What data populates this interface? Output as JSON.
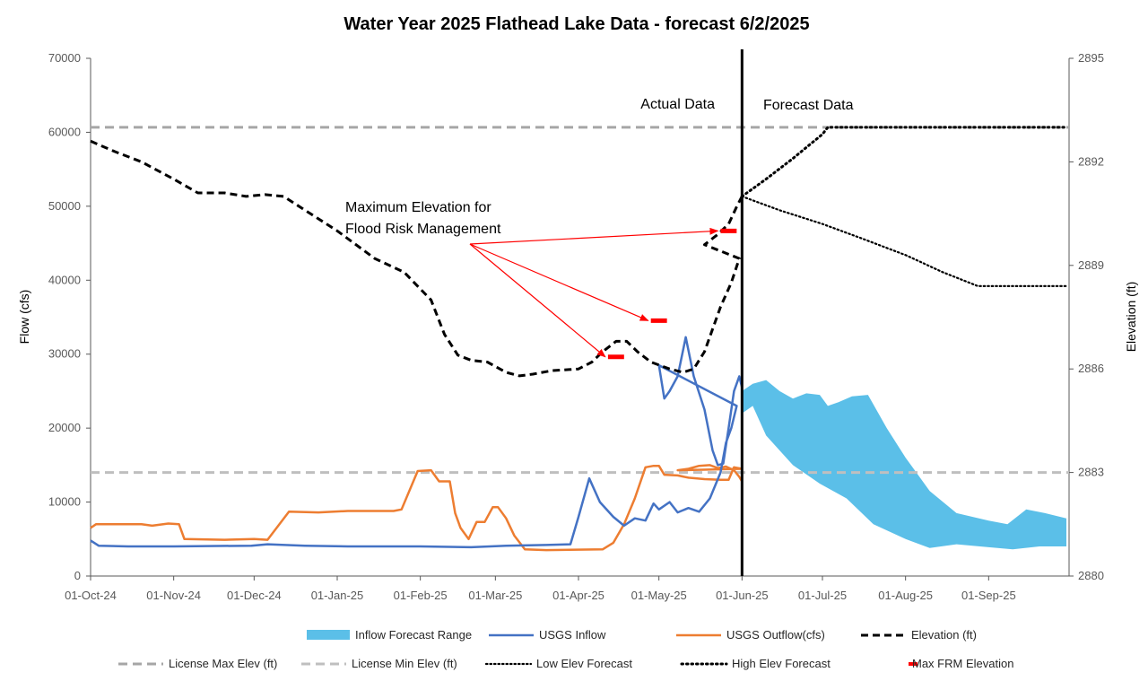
{
  "chart_data": {
    "type": "line",
    "title": "Water Year 2025 Flathead Lake Data - forecast 6/2/2025",
    "ylabel": "Flow (cfs)",
    "y2label": "Elevation (ft)",
    "ylim": [
      0,
      70000
    ],
    "y2lim": [
      2880,
      2895
    ],
    "yticks": [
      0,
      10000,
      20000,
      30000,
      40000,
      50000,
      60000,
      70000
    ],
    "y2ticks": [
      2880,
      2883,
      2886,
      2889,
      2892,
      2895
    ],
    "xlim": [
      "2024-10-01",
      "2025-09-30"
    ],
    "xticks": [
      "2024-10-01",
      "2024-11-01",
      "2024-12-01",
      "2025-01-01",
      "2025-02-01",
      "2025-03-01",
      "2025-04-01",
      "2025-05-01",
      "2025-06-01",
      "2025-07-01",
      "2025-08-01",
      "2025-09-01"
    ],
    "xtick_labels": [
      "01-Oct-24",
      "01-Nov-24",
      "01-Dec-24",
      "01-Jan-25",
      "01-Feb-25",
      "01-Mar-25",
      "01-Apr-25",
      "01-May-25",
      "01-Jun-25",
      "01-Jul-25",
      "01-Aug-25",
      "01-Sep-25"
    ],
    "divider_date": "2025-06-01",
    "region_labels": {
      "actual": "Actual Data",
      "forecast": "Forecast Data"
    },
    "annotation": {
      "line1": "Maximum Elevation for",
      "line2": "Flood Risk Management"
    },
    "colors": {
      "inflow_range": "#5bbfe8",
      "usgs_inflow": "#4472c4",
      "usgs_outflow": "#ed7d31",
      "elevation": "#000000",
      "license_max": "#a6a6a6",
      "license_min": "#bfbfbf",
      "forecast_dots": "#000000",
      "max_frm": "#ff0000",
      "arrows": "#ff0000"
    },
    "series": {
      "inflow_range": {
        "name": "Inflow Forecast Range",
        "upper": [
          [
            "2025-06-01",
            25000
          ],
          [
            "2025-06-05",
            26000
          ],
          [
            "2025-06-10",
            26500
          ],
          [
            "2025-06-15",
            25000
          ],
          [
            "2025-06-20",
            24000
          ],
          [
            "2025-06-25",
            24700
          ],
          [
            "2025-06-30",
            24500
          ],
          [
            "2025-07-03",
            23000
          ],
          [
            "2025-07-07",
            23500
          ],
          [
            "2025-07-12",
            24300
          ],
          [
            "2025-07-18",
            24500
          ],
          [
            "2025-07-25",
            20000
          ],
          [
            "2025-08-01",
            16000
          ],
          [
            "2025-08-10",
            11500
          ],
          [
            "2025-08-20",
            8500
          ],
          [
            "2025-09-01",
            7500
          ],
          [
            "2025-09-08",
            7000
          ],
          [
            "2025-09-15",
            9000
          ],
          [
            "2025-09-22",
            8500
          ],
          [
            "2025-09-30",
            7800
          ]
        ],
        "lower": [
          [
            "2025-06-01",
            22000
          ],
          [
            "2025-06-05",
            23000
          ],
          [
            "2025-06-10",
            19000
          ],
          [
            "2025-06-20",
            15000
          ],
          [
            "2025-06-30",
            12500
          ],
          [
            "2025-07-10",
            10500
          ],
          [
            "2025-07-20",
            7000
          ],
          [
            "2025-08-01",
            5000
          ],
          [
            "2025-08-10",
            3800
          ],
          [
            "2025-08-20",
            4300
          ],
          [
            "2025-09-01",
            3900
          ],
          [
            "2025-09-10",
            3600
          ],
          [
            "2025-09-20",
            4000
          ],
          [
            "2025-09-30",
            4000
          ]
        ]
      },
      "usgs_inflow": {
        "name": "USGS Inflow",
        "points": [
          [
            "2024-10-01",
            4800
          ],
          [
            "2024-10-04",
            4100
          ],
          [
            "2024-10-15",
            4000
          ],
          [
            "2024-11-01",
            4000
          ],
          [
            "2024-11-30",
            4100
          ],
          [
            "2024-12-06",
            4300
          ],
          [
            "2024-12-20",
            4100
          ],
          [
            "2025-01-05",
            4000
          ],
          [
            "2025-02-01",
            4000
          ],
          [
            "2025-02-20",
            3900
          ],
          [
            "2025-03-05",
            4100
          ],
          [
            "2025-03-20",
            4200
          ],
          [
            "2025-03-29",
            4300
          ],
          [
            "2025-04-01",
            8000
          ],
          [
            "2025-04-05",
            13200
          ],
          [
            "2025-04-09",
            10000
          ],
          [
            "2025-04-14",
            8000
          ],
          [
            "2025-04-18",
            6800
          ],
          [
            "2025-04-22",
            7800
          ],
          [
            "2025-04-26",
            7500
          ],
          [
            "2025-04-29",
            9800
          ],
          [
            "2025-05-01",
            9000
          ],
          [
            "2025-05-05",
            10000
          ],
          [
            "2025-05-08",
            8600
          ],
          [
            "2025-05-12",
            9200
          ],
          [
            "2025-05-16",
            8700
          ],
          [
            "2025-05-20",
            10500
          ],
          [
            "2025-05-24",
            14000
          ],
          [
            "2025-05-26",
            18000
          ],
          [
            "2025-05-28",
            20000
          ],
          [
            "2025-05-30",
            23000
          ],
          [
            "2025-05-01",
            28500
          ],
          [
            "2025-05-03",
            24000
          ],
          [
            "2025-05-05",
            25000
          ],
          [
            "2025-05-08",
            27000
          ],
          [
            "2025-05-11",
            32300
          ],
          [
            "2025-05-14",
            27000
          ],
          [
            "2025-05-18",
            22500
          ],
          [
            "2025-05-21",
            17000
          ],
          [
            "2025-05-23",
            15000
          ],
          [
            "2025-05-25",
            15200
          ],
          [
            "2025-05-27",
            20000
          ],
          [
            "2025-05-29",
            25000
          ],
          [
            "2025-05-31",
            27000
          ],
          [
            "2025-06-01",
            25500
          ]
        ]
      },
      "usgs_outflow": {
        "name": "USGS Outflow(cfs)",
        "points": [
          [
            "2024-10-01",
            6500
          ],
          [
            "2024-10-03",
            7000
          ],
          [
            "2024-10-20",
            7000
          ],
          [
            "2024-10-24",
            6800
          ],
          [
            "2024-10-30",
            7100
          ],
          [
            "2024-11-03",
            7000
          ],
          [
            "2024-11-05",
            5000
          ],
          [
            "2024-11-20",
            4900
          ],
          [
            "2024-12-01",
            5000
          ],
          [
            "2024-12-06",
            4900
          ],
          [
            "2024-12-14",
            8700
          ],
          [
            "2024-12-25",
            8600
          ],
          [
            "2025-01-05",
            8800
          ],
          [
            "2025-01-22",
            8800
          ],
          [
            "2025-01-25",
            9000
          ],
          [
            "2025-01-31",
            14200
          ],
          [
            "2025-02-05",
            14300
          ],
          [
            "2025-02-08",
            12800
          ],
          [
            "2025-02-12",
            12800
          ],
          [
            "2025-02-14",
            8500
          ],
          [
            "2025-02-16",
            6500
          ],
          [
            "2025-02-19",
            5000
          ],
          [
            "2025-02-22",
            7300
          ],
          [
            "2025-02-25",
            7300
          ],
          [
            "2025-02-28",
            9300
          ],
          [
            "2025-03-02",
            9300
          ],
          [
            "2025-03-05",
            7800
          ],
          [
            "2025-03-08",
            5500
          ],
          [
            "2025-03-12",
            3600
          ],
          [
            "2025-03-20",
            3500
          ],
          [
            "2025-04-10",
            3600
          ],
          [
            "2025-04-14",
            4500
          ],
          [
            "2025-04-18",
            7000
          ],
          [
            "2025-04-22",
            10500
          ],
          [
            "2025-04-26",
            14700
          ],
          [
            "2025-04-29",
            14900
          ],
          [
            "2025-05-01",
            14900
          ],
          [
            "2025-05-03",
            13700
          ],
          [
            "2025-05-08",
            13600
          ],
          [
            "2025-05-12",
            13300
          ],
          [
            "2025-05-18",
            13100
          ],
          [
            "2025-05-24",
            13000
          ],
          [
            "2025-05-27",
            13000
          ],
          [
            "2025-05-29",
            14700
          ],
          [
            "2025-06-01",
            14500
          ],
          [
            "2025-05-08",
            14300
          ],
          [
            "2025-05-12",
            14500
          ],
          [
            "2025-05-16",
            14900
          ],
          [
            "2025-05-20",
            15000
          ],
          [
            "2025-05-23",
            14600
          ],
          [
            "2025-05-26",
            14800
          ],
          [
            "2025-05-29",
            14300
          ],
          [
            "2025-05-31",
            13400
          ],
          [
            "2025-06-01",
            12800
          ]
        ]
      },
      "elevation": {
        "name": "Elevation (ft)",
        "points": [
          [
            "2024-10-01",
            2892.6
          ],
          [
            "2024-10-10",
            2892.3
          ],
          [
            "2024-10-20",
            2892.0
          ],
          [
            "2024-11-01",
            2891.5
          ],
          [
            "2024-11-10",
            2891.1
          ],
          [
            "2024-11-20",
            2891.1
          ],
          [
            "2024-11-28",
            2891.0
          ],
          [
            "2024-12-05",
            2891.05
          ],
          [
            "2024-12-12",
            2891.0
          ],
          [
            "2024-12-20",
            2890.6
          ],
          [
            "2025-01-01",
            2890.0
          ],
          [
            "2025-01-15",
            2889.2
          ],
          [
            "2025-01-26",
            2888.8
          ],
          [
            "2025-02-05",
            2888.0
          ],
          [
            "2025-02-10",
            2887.0
          ],
          [
            "2025-02-15",
            2886.4
          ],
          [
            "2025-02-20",
            2886.25
          ],
          [
            "2025-02-26",
            2886.2
          ],
          [
            "2025-03-05",
            2885.9
          ],
          [
            "2025-03-10",
            2885.8
          ],
          [
            "2025-03-15",
            2885.85
          ],
          [
            "2025-03-22",
            2885.95
          ],
          [
            "2025-04-01",
            2886.0
          ],
          [
            "2025-04-06",
            2886.2
          ],
          [
            "2025-04-10",
            2886.5
          ],
          [
            "2025-04-15",
            2886.8
          ],
          [
            "2025-04-19",
            2886.8
          ],
          [
            "2025-04-23",
            2886.5
          ],
          [
            "2025-04-28",
            2886.2
          ],
          [
            "2025-05-05",
            2886.0
          ],
          [
            "2025-05-10",
            2885.9
          ],
          [
            "2025-05-14",
            2886.0
          ],
          [
            "2025-05-18",
            2886.5
          ],
          [
            "2025-05-24",
            2887.8
          ],
          [
            "2025-05-28",
            2888.5
          ],
          [
            "2025-05-31",
            2889.2
          ],
          [
            "2025-05-18",
            2889.6
          ],
          [
            "2025-05-23",
            2889.9
          ],
          [
            "2025-05-27",
            2890.2
          ],
          [
            "2025-05-30",
            2890.7
          ],
          [
            "2025-06-01",
            2891.0
          ]
        ]
      },
      "license_max": {
        "name": "License Max Elev (ft)",
        "value": 2893
      },
      "license_min": {
        "name": "License Min Elev (ft)",
        "value": 2883
      },
      "low_elev_forecast": {
        "name": "Low Elev Forecast",
        "points": [
          [
            "2025-06-01",
            2891.0
          ],
          [
            "2025-06-15",
            2890.6
          ],
          [
            "2025-07-01",
            2890.2
          ],
          [
            "2025-07-15",
            2889.8
          ],
          [
            "2025-08-01",
            2889.3
          ],
          [
            "2025-08-15",
            2888.8
          ],
          [
            "2025-08-28",
            2888.4
          ],
          [
            "2025-09-30",
            2888.4
          ]
        ]
      },
      "high_elev_forecast": {
        "name": "High Elev Forecast",
        "points": [
          [
            "2025-06-01",
            2891.0
          ],
          [
            "2025-06-10",
            2891.5
          ],
          [
            "2025-06-20",
            2892.1
          ],
          [
            "2025-07-01",
            2892.8
          ],
          [
            "2025-07-03",
            2893.0
          ],
          [
            "2025-09-30",
            2893.0
          ]
        ]
      },
      "max_frm_elevation": {
        "name": "Max FRM Elevation",
        "segments": [
          [
            "2025-04-12",
            "2025-04-18",
            2886.35
          ],
          [
            "2025-04-28",
            "2025-05-04",
            2887.4
          ],
          [
            "2025-05-24",
            "2025-05-30",
            2890.0
          ]
        ]
      }
    },
    "legend": {
      "placement": "bottom",
      "row1": [
        "Inflow Forecast Range",
        "USGS Inflow",
        "USGS Outflow(cfs)",
        "Elevation (ft)"
      ],
      "row2": [
        "License Max Elev (ft)",
        "License Min Elev (ft)",
        "Low Elev Forecast",
        "High Elev Forecast",
        "Max FRM Elevation"
      ]
    }
  }
}
